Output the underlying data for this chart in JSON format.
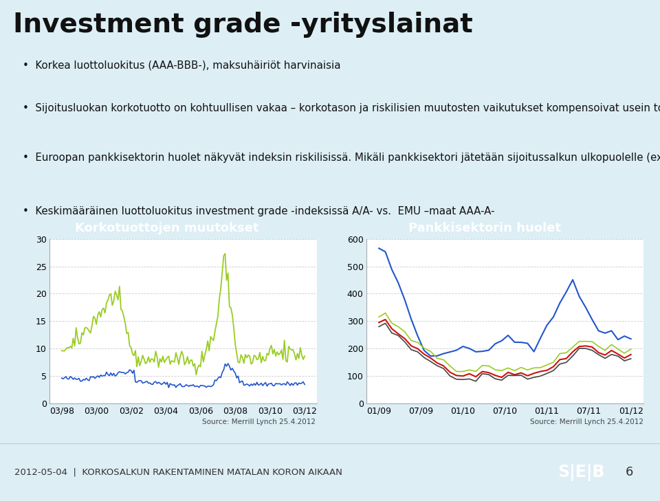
{
  "title": "Investment grade -yrityslainat",
  "background_color": "#ddeef5",
  "white_bg": "#ffffff",
  "bullet_points": [
    "Korkea luottoluokitus (AAA-BBB-), maksuhäiriöt harvinaisia",
    "Sijoitusluokan korkotuotto on kohtuullisen vakaa – korkotason ja riskilisien muutosten vaikutukset kompensoivat usein toisensa",
    "Euroopan pankkisektorin huolet näkyvät indeksin riskilisissä. Mikäli pankkisektori jätetään sijoitussalkun ulkopuolelle (ex financials) saadaan hyvä lisä valtionlainoille nykymarkkinassa",
    "Keskimääräinen luottoluokitus investment grade -indeksissä A/A- vs.  EMU –maat AAA-A-"
  ],
  "left_chart": {
    "title": "Korkotuottojen muutokset",
    "title_bg": "#2ab0c8",
    "title_color": "#ffffff",
    "ylim": [
      0,
      30
    ],
    "yticks": [
      0,
      5,
      10,
      15,
      20,
      25,
      30
    ],
    "xticks_labels": [
      "03/98",
      "03/00",
      "03/02",
      "03/04",
      "03/06",
      "03/08",
      "03/10",
      "03/12"
    ],
    "source": "Source: Merrill Lynch 25.4.2012",
    "line1_color": "#99cc22",
    "line2_color": "#2255cc"
  },
  "right_chart": {
    "title": "Pankkisektorin huolet",
    "title_bg": "#6b3a2a",
    "title_color": "#ffffff",
    "ylim": [
      0,
      600
    ],
    "yticks": [
      0,
      100,
      200,
      300,
      400,
      500,
      600
    ],
    "xticks_labels": [
      "01/09",
      "07/09",
      "01/10",
      "07/10",
      "01/11",
      "07/11",
      "01/12"
    ],
    "source": "Source: Merrill Lynch 25.4.2012",
    "line_blue_color": "#2255cc",
    "line_red_color": "#cc1111",
    "line_green_color": "#99cc22",
    "line_dark_color": "#444444"
  },
  "footer_text": "2012-05-04  |  KORKOSALKUN RAKENTAMINEN MATALAN KORON AIKAAN",
  "footer_bg": "#ffffff",
  "seb_bg": "#66cc00",
  "page_number": "6"
}
